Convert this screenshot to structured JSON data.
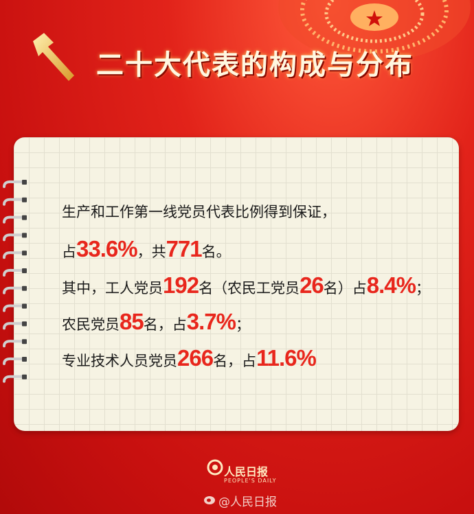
{
  "header": {
    "title": "二十大代表的构成与分布"
  },
  "content": {
    "lines": [
      [
        {
          "text": "生产和工作第一线党员代表比例得到保证，"
        }
      ],
      [
        {
          "text": "占"
        },
        {
          "text": "33.6%",
          "emphasis": true
        },
        {
          "text": "，共"
        },
        {
          "text": "771",
          "emphasis": true
        },
        {
          "text": "名。"
        }
      ],
      [
        {
          "text": "其中，工人党员"
        },
        {
          "text": "192",
          "emphasis": true
        },
        {
          "text": "名（农民工党员"
        },
        {
          "text": "26",
          "emphasis": true
        },
        {
          "text": "名）占"
        },
        {
          "text": "8.4%",
          "emphasis": true
        },
        {
          "text": "；"
        }
      ],
      [
        {
          "text": "农民党员"
        },
        {
          "text": "85",
          "emphasis": true
        },
        {
          "text": "名，占"
        },
        {
          "text": "3.7%",
          "emphasis": true
        },
        {
          "text": "；"
        }
      ],
      [
        {
          "text": "专业技术人员党员"
        },
        {
          "text": "266",
          "emphasis": true
        },
        {
          "text": "名，占"
        },
        {
          "text": "11.6%",
          "emphasis": true
        }
      ]
    ]
  },
  "footer": {
    "logo": "人民日报",
    "logo_sub": "PEOPLE'S DAILY",
    "watermark": "@人民日报"
  }
}
